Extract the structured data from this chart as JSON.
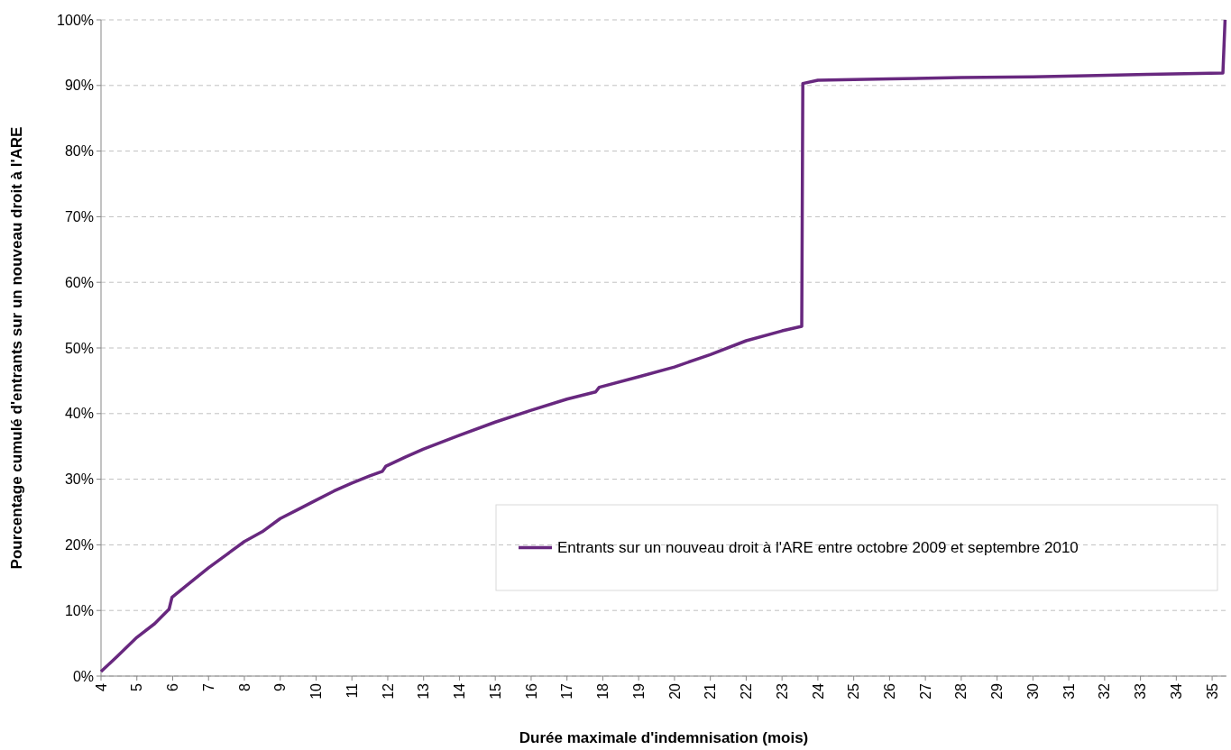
{
  "chart_data": {
    "type": "line",
    "xlabel": "Durée maximale d'indemnisation (mois)",
    "ylabel": "Pourcentage cumulé d'entrants sur un nouveau droit à l'ARE",
    "xlim": [
      4,
      35.4
    ],
    "xticks": [
      4,
      5,
      6,
      7,
      8,
      9,
      10,
      11,
      12,
      13,
      14,
      15,
      16,
      17,
      18,
      19,
      20,
      21,
      22,
      23,
      24,
      25,
      26,
      27,
      28,
      29,
      30,
      31,
      32,
      33,
      34,
      35
    ],
    "ylim": [
      0,
      100
    ],
    "yticks": [
      {
        "value": 0,
        "label": "0%"
      },
      {
        "value": 10,
        "label": "10%"
      },
      {
        "value": 20,
        "label": "20%"
      },
      {
        "value": 30,
        "label": "30%"
      },
      {
        "value": 40,
        "label": "40%"
      },
      {
        "value": 50,
        "label": "50%"
      },
      {
        "value": 60,
        "label": "60%"
      },
      {
        "value": 70,
        "label": "70%"
      },
      {
        "value": 80,
        "label": "80%"
      },
      {
        "value": 90,
        "label": "90%"
      },
      {
        "value": 100,
        "label": "100%"
      }
    ],
    "grid": "y",
    "legend": "bottom right",
    "line_style": "solid",
    "series": [
      {
        "name": "Entrants sur un nouveau droit à l'ARE entre octobre 2009 et septembre 2010",
        "color": "#68287f",
        "x": [
          4,
          4.45,
          5,
          5.5,
          5.9,
          5.98,
          6.5,
          7,
          7.5,
          8,
          8.5,
          9,
          9.5,
          10,
          10.5,
          11,
          11.5,
          11.85,
          11.95,
          12.5,
          13,
          14,
          15,
          16,
          17,
          17.8,
          17.9,
          19,
          20,
          21,
          22,
          23,
          23.55,
          23.58,
          24,
          26,
          28,
          30,
          31.5,
          33.2,
          35.3,
          35.36
        ],
        "values": [
          0.7,
          3,
          5.9,
          8,
          10.2,
          12,
          14.3,
          16.5,
          18.5,
          20.5,
          22,
          24,
          25.4,
          26.8,
          28.2,
          29.4,
          30.5,
          31.2,
          32,
          33.4,
          34.6,
          36.7,
          38.7,
          40.5,
          42.2,
          43.3,
          44,
          45.6,
          47.1,
          49,
          51.1,
          52.6,
          53.3,
          90.3,
          90.8,
          91,
          91.2,
          91.3,
          91.5,
          91.7,
          91.9,
          100
        ]
      }
    ]
  }
}
